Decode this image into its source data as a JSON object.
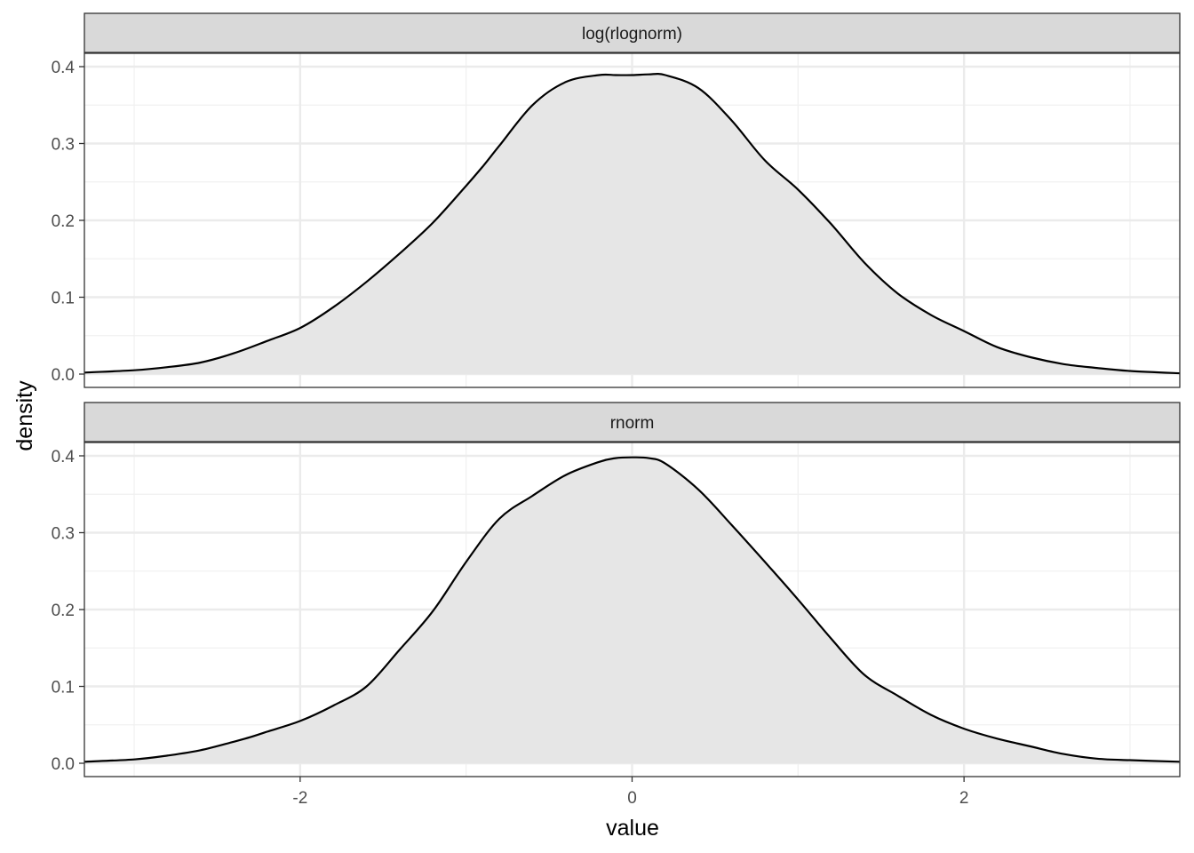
{
  "chart_data": {
    "type": "area",
    "facet_layout": "stacked-vertical",
    "xlabel": "value",
    "ylabel": "density",
    "xlim": [
      -3.3,
      3.3
    ],
    "ylim": [
      0,
      0.4
    ],
    "x_ticks": [
      -2,
      0,
      2
    ],
    "x_tick_labels": [
      "-2",
      "0",
      "2"
    ],
    "y_ticks": [
      0,
      0.1,
      0.2,
      0.3,
      0.4
    ],
    "y_tick_labels": [
      "0.0",
      "0.1",
      "0.2",
      "0.3",
      "0.4"
    ],
    "grid": true,
    "fill_color": "#e6e6e6",
    "line_color": "#000000",
    "panels": [
      {
        "label": "log(rlognorm)",
        "x": [
          -3.3,
          -3.0,
          -2.8,
          -2.6,
          -2.4,
          -2.2,
          -2.0,
          -1.8,
          -1.6,
          -1.4,
          -1.2,
          -1.0,
          -0.9,
          -0.8,
          -0.6,
          -0.4,
          -0.2,
          -0.1,
          0.0,
          0.1,
          0.2,
          0.4,
          0.6,
          0.8,
          1.0,
          1.2,
          1.4,
          1.6,
          1.8,
          2.0,
          2.2,
          2.4,
          2.6,
          2.8,
          3.0,
          3.3
        ],
        "y": [
          0.002,
          0.005,
          0.009,
          0.015,
          0.027,
          0.043,
          0.06,
          0.087,
          0.12,
          0.157,
          0.197,
          0.245,
          0.27,
          0.297,
          0.35,
          0.38,
          0.389,
          0.389,
          0.389,
          0.39,
          0.389,
          0.372,
          0.33,
          0.278,
          0.24,
          0.195,
          0.145,
          0.105,
          0.077,
          0.056,
          0.035,
          0.022,
          0.013,
          0.008,
          0.004,
          0.001
        ]
      },
      {
        "label": "rnorm",
        "x": [
          -3.3,
          -3.0,
          -2.8,
          -2.6,
          -2.4,
          -2.3,
          -2.2,
          -2.0,
          -1.8,
          -1.6,
          -1.4,
          -1.2,
          -1.0,
          -0.8,
          -0.6,
          -0.4,
          -0.2,
          -0.1,
          0.0,
          0.1,
          0.2,
          0.4,
          0.6,
          0.8,
          1.0,
          1.2,
          1.4,
          1.6,
          1.8,
          2.0,
          2.2,
          2.4,
          2.6,
          2.8,
          3.0,
          3.3
        ],
        "y": [
          0.002,
          0.005,
          0.01,
          0.017,
          0.028,
          0.034,
          0.041,
          0.055,
          0.075,
          0.1,
          0.148,
          0.198,
          0.262,
          0.318,
          0.348,
          0.375,
          0.392,
          0.397,
          0.398,
          0.397,
          0.39,
          0.356,
          0.31,
          0.262,
          0.213,
          0.162,
          0.115,
          0.088,
          0.063,
          0.045,
          0.032,
          0.022,
          0.012,
          0.006,
          0.004,
          0.002
        ]
      }
    ]
  }
}
